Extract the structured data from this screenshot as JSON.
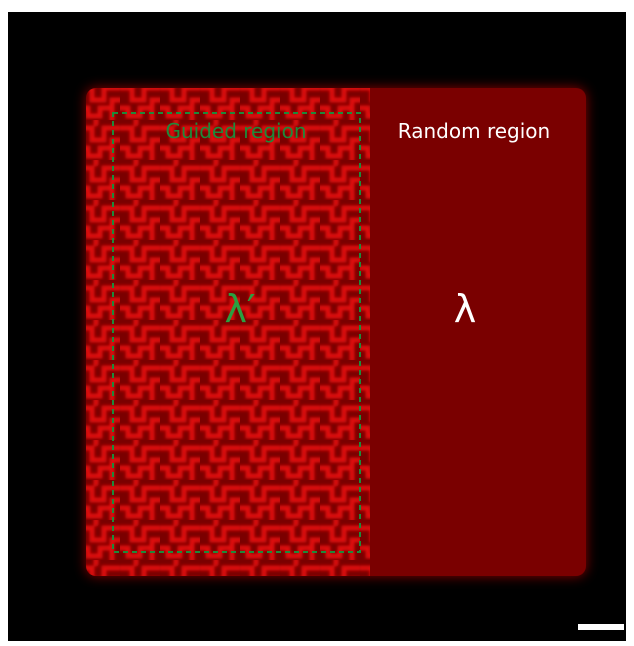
{
  "labels": {
    "guided": "Guided region",
    "random": "Random region",
    "lambda_guided": "λ′",
    "lambda_random": "λ"
  }
}
